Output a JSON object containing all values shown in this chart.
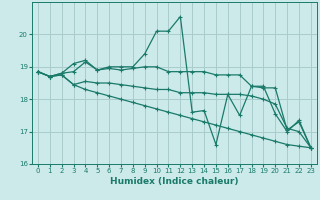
{
  "xlabel": "Humidex (Indice chaleur)",
  "bg_color": "#cceaea",
  "grid_color": "#aacccc",
  "line_color": "#1a7a6a",
  "xlim": [
    -0.5,
    23.5
  ],
  "ylim": [
    16,
    21
  ],
  "yticks": [
    16,
    17,
    18,
    19,
    20
  ],
  "xticks": [
    0,
    1,
    2,
    3,
    4,
    5,
    6,
    7,
    8,
    9,
    10,
    11,
    12,
    13,
    14,
    15,
    16,
    17,
    18,
    19,
    20,
    21,
    22,
    23
  ],
  "series": [
    {
      "x": [
        0,
        1,
        2,
        3,
        4,
        5,
        6,
        7,
        8,
        9,
        10,
        11,
        12,
        13,
        14,
        15,
        16,
        17,
        18,
        19,
        20,
        21,
        22,
        23
      ],
      "y": [
        18.85,
        18.7,
        18.8,
        18.85,
        19.15,
        18.9,
        19.0,
        19.0,
        19.0,
        19.4,
        20.1,
        20.1,
        20.55,
        17.6,
        17.65,
        16.6,
        18.15,
        17.5,
        18.4,
        18.4,
        17.55,
        17.0,
        17.35,
        16.5
      ]
    },
    {
      "x": [
        0,
        1,
        2,
        3,
        4,
        5,
        6,
        7,
        8,
        9,
        10,
        11,
        12,
        13,
        14,
        15,
        16,
        17,
        18,
        19,
        20,
        21,
        22,
        23
      ],
      "y": [
        18.85,
        18.7,
        18.8,
        19.1,
        19.2,
        18.9,
        18.95,
        18.9,
        18.95,
        19.0,
        19.0,
        18.85,
        18.85,
        18.85,
        18.85,
        18.75,
        18.75,
        18.75,
        18.4,
        18.35,
        18.35,
        17.05,
        17.3,
        16.5
      ]
    },
    {
      "x": [
        0,
        1,
        2,
        3,
        4,
        5,
        6,
        7,
        8,
        9,
        10,
        11,
        12,
        13,
        14,
        15,
        16,
        17,
        18,
        19,
        20,
        21,
        22,
        23
      ],
      "y": [
        18.85,
        18.7,
        18.75,
        18.45,
        18.55,
        18.5,
        18.5,
        18.45,
        18.4,
        18.35,
        18.3,
        18.3,
        18.2,
        18.2,
        18.2,
        18.15,
        18.15,
        18.15,
        18.1,
        18.0,
        17.85,
        17.1,
        17.0,
        16.5
      ]
    },
    {
      "x": [
        0,
        1,
        2,
        3,
        4,
        5,
        6,
        7,
        8,
        9,
        10,
        11,
        12,
        13,
        14,
        15,
        16,
        17,
        18,
        19,
        20,
        21,
        22,
        23
      ],
      "y": [
        18.85,
        18.7,
        18.75,
        18.45,
        18.3,
        18.2,
        18.1,
        18.0,
        17.9,
        17.8,
        17.7,
        17.6,
        17.5,
        17.4,
        17.3,
        17.2,
        17.1,
        17.0,
        16.9,
        16.8,
        16.7,
        16.6,
        16.55,
        16.5
      ]
    }
  ]
}
